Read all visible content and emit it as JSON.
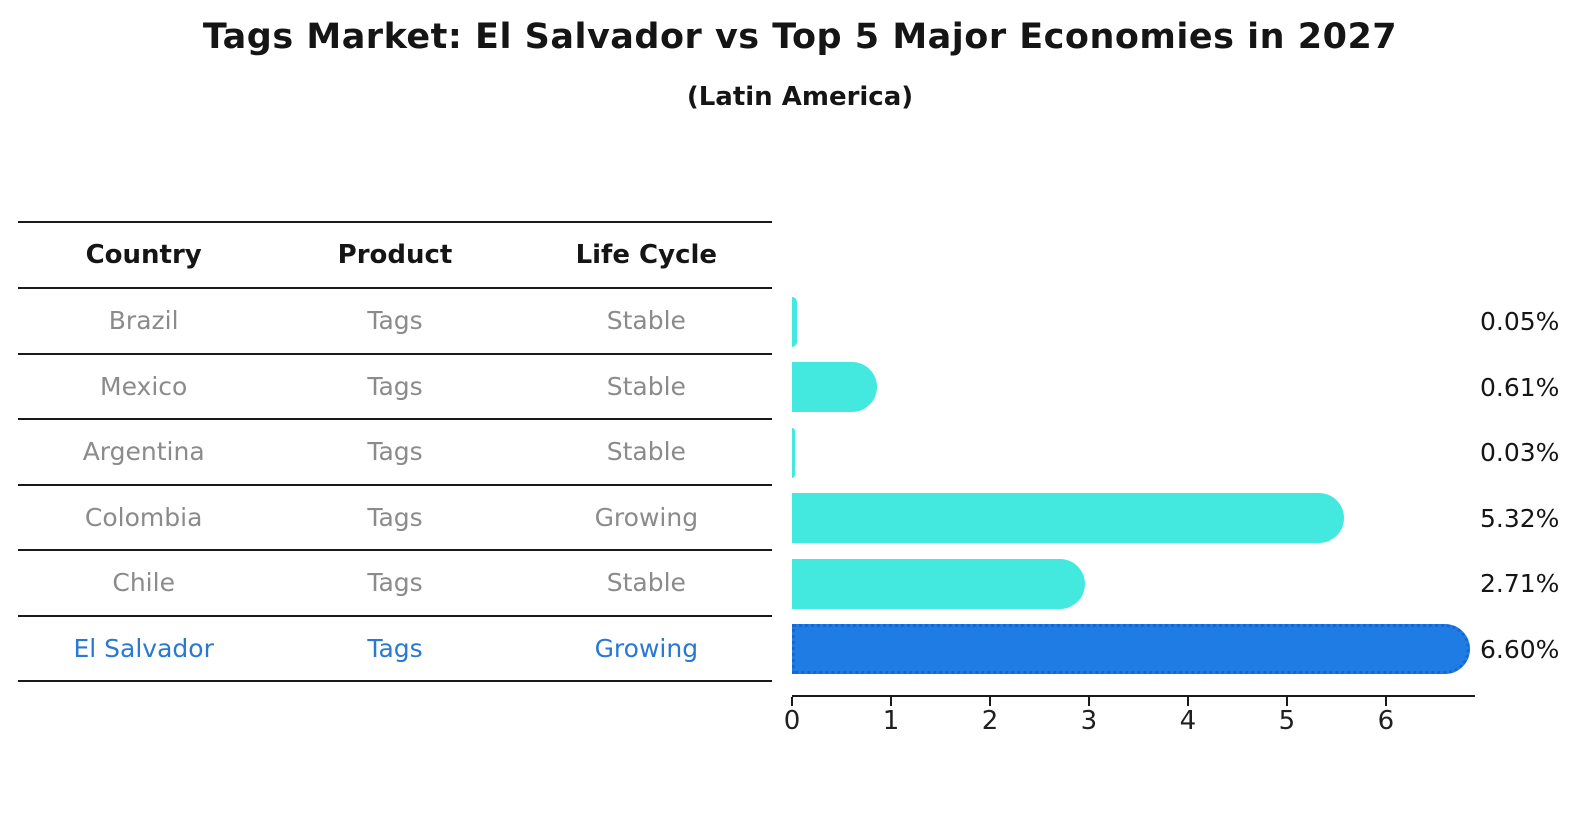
{
  "title": "Tags Market: El Salvador vs Top 5 Major Economies in 2027",
  "subtitle": "(Latin America)",
  "table": {
    "headers": [
      "Country",
      "Product",
      "Life Cycle"
    ],
    "rows": [
      {
        "country": "Brazil",
        "product": "Tags",
        "life_cycle": "Stable",
        "highlighted": false
      },
      {
        "country": "Mexico",
        "product": "Tags",
        "life_cycle": "Stable",
        "highlighted": false
      },
      {
        "country": "Argentina",
        "product": "Tags",
        "life_cycle": "Stable",
        "highlighted": false
      },
      {
        "country": "Colombia",
        "product": "Tags",
        "life_cycle": "Growing",
        "highlighted": false
      },
      {
        "country": "Chile",
        "product": "Tags",
        "life_cycle": "Stable",
        "highlighted": false
      },
      {
        "country": "El Salvador",
        "product": "Tags",
        "life_cycle": "Growing",
        "highlighted": true
      }
    ]
  },
  "chart_data": {
    "type": "bar",
    "orientation": "horizontal",
    "title": "Tags Market: El Salvador vs Top 5 Major Economies in 2027",
    "subtitle": "(Latin America)",
    "categories": [
      "Brazil",
      "Mexico",
      "Argentina",
      "Colombia",
      "Chile",
      "El Salvador"
    ],
    "values": [
      0.05,
      0.61,
      0.03,
      5.32,
      2.71,
      6.6
    ],
    "value_labels": [
      "0.05%",
      "0.61%",
      "0.03%",
      "5.32%",
      "2.71%",
      "6.60%"
    ],
    "highlight_index": 5,
    "xlim": [
      0,
      6.9
    ],
    "xticks": [
      0,
      1,
      2,
      3,
      4,
      5,
      6
    ],
    "grid": false,
    "legend": null,
    "bar_color": "#43e8df",
    "highlight_bar_color": "#1f7ce4",
    "highlight_text_color": "#2878d4"
  }
}
